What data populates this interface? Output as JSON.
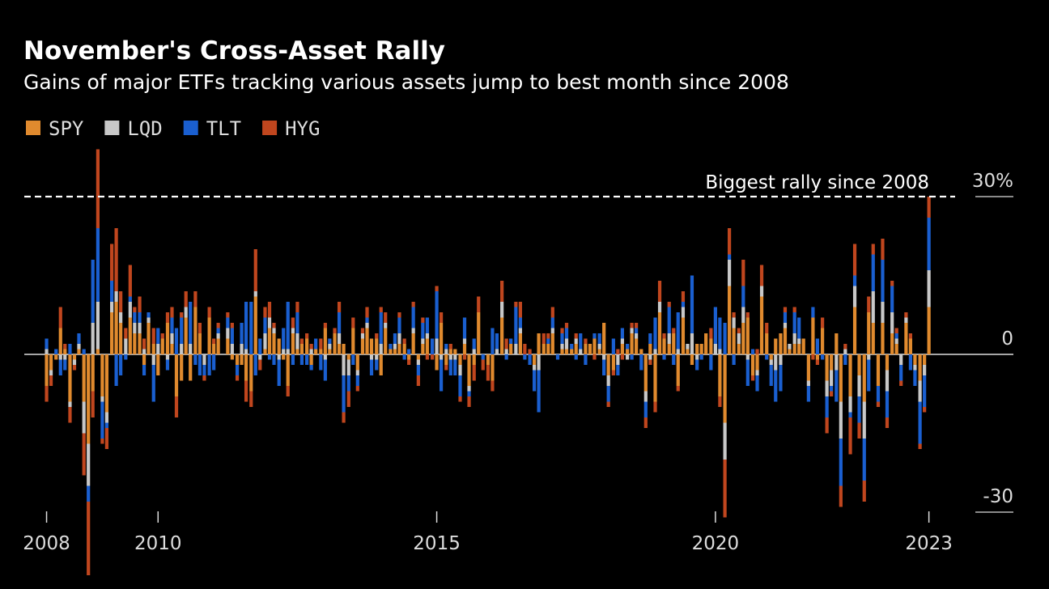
{
  "chart_data": {
    "type": "stacked_bar",
    "title": "November's Cross-Asset Rally",
    "subtitle": "Gains of major ETFs tracking various assets jump to best month since 2008",
    "annotation": {
      "text": "Biggest rally since 2008",
      "value": 30
    },
    "xlim": [
      2007.6,
      2024.3
    ],
    "xticks": [
      2008,
      2010,
      2015,
      2020,
      {
        "value": 2023.83,
        "label": "2023"
      }
    ],
    "ylim": [
      -42,
      40
    ],
    "yticks": [
      -30,
      0,
      {
        "value": 30,
        "label": "30%"
      }
    ],
    "legend": "top-left",
    "x": [
      2008,
      2008.08,
      2008.17,
      2008.25,
      2008.33,
      2008.42,
      2008.5,
      2008.58,
      2008.67,
      2008.75,
      2008.83,
      2008.92,
      2009,
      2009.08,
      2009.17,
      2009.25,
      2009.33,
      2009.42,
      2009.5,
      2009.58,
      2009.67,
      2009.75,
      2009.83,
      2009.92,
      2010,
      2010.08,
      2010.17,
      2010.25,
      2010.33,
      2010.42,
      2010.5,
      2010.58,
      2010.67,
      2010.75,
      2010.83,
      2010.92,
      2011,
      2011.08,
      2011.17,
      2011.25,
      2011.33,
      2011.42,
      2011.5,
      2011.58,
      2011.67,
      2011.75,
      2011.83,
      2011.92,
      2012,
      2012.08,
      2012.17,
      2012.25,
      2012.33,
      2012.42,
      2012.5,
      2012.58,
      2012.67,
      2012.75,
      2012.83,
      2012.92,
      2013,
      2013.08,
      2013.17,
      2013.25,
      2013.33,
      2013.42,
      2013.5,
      2013.58,
      2013.67,
      2013.75,
      2013.83,
      2013.92,
      2014,
      2014.08,
      2014.17,
      2014.25,
      2014.33,
      2014.42,
      2014.5,
      2014.58,
      2014.67,
      2014.75,
      2014.83,
      2014.92,
      2015,
      2015.08,
      2015.17,
      2015.25,
      2015.33,
      2015.42,
      2015.5,
      2015.58,
      2015.67,
      2015.75,
      2015.83,
      2015.92,
      2016,
      2016.08,
      2016.17,
      2016.25,
      2016.33,
      2016.42,
      2016.5,
      2016.58,
      2016.67,
      2016.75,
      2016.83,
      2016.92,
      2017,
      2017.08,
      2017.17,
      2017.25,
      2017.33,
      2017.42,
      2017.5,
      2017.58,
      2017.67,
      2017.75,
      2017.83,
      2017.92,
      2018,
      2018.08,
      2018.17,
      2018.25,
      2018.33,
      2018.42,
      2018.5,
      2018.58,
      2018.67,
      2018.75,
      2018.83,
      2018.92,
      2019,
      2019.08,
      2019.17,
      2019.25,
      2019.33,
      2019.42,
      2019.5,
      2019.58,
      2019.67,
      2019.75,
      2019.83,
      2019.92,
      2020,
      2020.08,
      2020.17,
      2020.25,
      2020.33,
      2020.42,
      2020.5,
      2020.58,
      2020.67,
      2020.75,
      2020.83,
      2020.92,
      2021,
      2021.08,
      2021.17,
      2021.25,
      2021.33,
      2021.42,
      2021.5,
      2021.58,
      2021.67,
      2021.75,
      2021.83,
      2021.92,
      2022,
      2022.08,
      2022.17,
      2022.25,
      2022.33,
      2022.42,
      2022.5,
      2022.58,
      2022.67,
      2022.75,
      2022.83,
      2022.92,
      2023,
      2023.08,
      2023.17,
      2023.25,
      2023.33,
      2023.42,
      2023.5,
      2023.58,
      2023.67,
      2023.75,
      2023.83
    ],
    "series": [
      {
        "name": "SPY",
        "color": "#e08a2e",
        "values": [
          -6,
          -3,
          -1,
          5,
          1,
          -9,
          -1,
          1,
          -9,
          -17,
          -7,
          1,
          -8,
          -11,
          8,
          10,
          6,
          0,
          7,
          4,
          4,
          -2,
          6,
          2,
          -4,
          3,
          6,
          2,
          -8,
          -5,
          7,
          -5,
          9,
          4,
          0,
          7,
          2,
          3,
          0,
          3,
          -1,
          -2,
          -2,
          -5,
          -7,
          11,
          0,
          1,
          5,
          4,
          3,
          -1,
          -6,
          4,
          1,
          2,
          3,
          -2,
          1,
          1,
          5,
          1,
          4,
          2,
          2,
          -1,
          5,
          -3,
          3,
          5,
          3,
          3,
          -4,
          5,
          1,
          1,
          2,
          2,
          -1,
          4,
          -1,
          2,
          3,
          0,
          -3,
          6,
          -2,
          1,
          1,
          -2,
          2,
          -6,
          -2,
          8,
          0,
          -2,
          -5,
          0,
          7,
          0,
          2,
          0,
          4,
          0,
          0,
          -2,
          4,
          2,
          2,
          4,
          0,
          1,
          1,
          1,
          2,
          0,
          2,
          2,
          3,
          1,
          6,
          -4,
          -3,
          0,
          2,
          1,
          4,
          3,
          1,
          -7,
          2,
          -9,
          8,
          3,
          2,
          4,
          -6,
          7,
          1,
          -2,
          2,
          2,
          4,
          3,
          0,
          -8,
          -13,
          13,
          5,
          2,
          6,
          7,
          -4,
          -3,
          11,
          4,
          -1,
          3,
          4,
          5,
          1,
          2,
          2,
          3,
          -5,
          7,
          -1,
          5,
          -5,
          -3,
          4,
          -9,
          0,
          -8,
          9,
          -4,
          -9,
          8,
          6,
          -6,
          6,
          -3,
          4,
          2,
          0,
          6,
          3,
          -2,
          -5,
          -2,
          9
        ]
      },
      {
        "name": "LQD",
        "color": "#c8c8c8",
        "values": [
          1,
          -1,
          0,
          -1,
          -1,
          -1,
          -1,
          1,
          -6,
          -8,
          6,
          9,
          -1,
          -2,
          2,
          2,
          2,
          3,
          3,
          2,
          2,
          1,
          1,
          -2,
          2,
          0,
          -1,
          2,
          0,
          2,
          2,
          2,
          0,
          0,
          -2,
          0,
          0,
          1,
          0,
          2,
          2,
          0,
          2,
          1,
          0,
          1,
          -1,
          3,
          2,
          1,
          -1,
          1,
          1,
          1,
          3,
          0,
          0,
          1,
          0,
          0,
          -1,
          1,
          0,
          2,
          -4,
          -3,
          0,
          -1,
          1,
          1,
          -1,
          -1,
          2,
          1,
          0,
          1,
          2,
          0,
          0,
          1,
          -1,
          1,
          1,
          0,
          3,
          -1,
          1,
          -1,
          -1,
          -2,
          1,
          -1,
          1,
          0,
          0,
          0,
          0,
          1,
          3,
          1,
          0,
          2,
          1,
          0,
          0,
          -1,
          -3,
          0,
          0,
          1,
          0,
          1,
          2,
          0,
          1,
          1,
          0,
          0,
          0,
          1,
          -1,
          -2,
          0,
          -2,
          1,
          -1,
          1,
          1,
          0,
          -2,
          -1,
          1,
          2,
          0,
          2,
          0,
          1,
          2,
          1,
          4,
          -1,
          0,
          0,
          0,
          2,
          1,
          -7,
          5,
          2,
          2,
          3,
          -1,
          0,
          -1,
          2,
          0,
          -1,
          -3,
          -2,
          1,
          1,
          2,
          1,
          0,
          -1,
          0,
          0,
          0,
          -3,
          -3,
          -3,
          -7,
          1,
          -3,
          4,
          -4,
          -7,
          -1,
          6,
          0,
          4,
          -4,
          4,
          1,
          -2,
          1,
          0,
          -1,
          -4,
          -2,
          7
        ]
      },
      {
        "name": "TLT",
        "color": "#1a5fd0",
        "values": [
          2,
          0,
          1,
          -3,
          -2,
          2,
          0,
          2,
          1,
          -3,
          12,
          14,
          -7,
          -1,
          4,
          -6,
          -4,
          -1,
          1,
          2,
          2,
          -2,
          1,
          -7,
          3,
          0,
          -2,
          3,
          5,
          5,
          0,
          8,
          -2,
          -4,
          -2,
          -4,
          -3,
          1,
          0,
          2,
          3,
          -2,
          4,
          9,
          10,
          -4,
          3,
          3,
          -1,
          -2,
          -5,
          4,
          9,
          -2,
          4,
          -2,
          -2,
          -1,
          2,
          -3,
          -4,
          1,
          0,
          4,
          -7,
          -3,
          -2,
          -2,
          0,
          1,
          -3,
          -2,
          6,
          0,
          1,
          2,
          3,
          -1,
          1,
          4,
          -2,
          3,
          3,
          3,
          9,
          -6,
          1,
          -3,
          -3,
          -4,
          4,
          -1,
          2,
          0,
          -1,
          0,
          5,
          3,
          0,
          -1,
          1,
          7,
          2,
          -1,
          -2,
          -4,
          -8,
          0,
          1,
          2,
          -1,
          2,
          2,
          1,
          -1,
          3,
          -2,
          0,
          1,
          2,
          -3,
          -3,
          3,
          -2,
          2,
          1,
          -1,
          1,
          -3,
          -3,
          2,
          6,
          0,
          -1,
          5,
          -2,
          7,
          1,
          0,
          11,
          -2,
          -1,
          0,
          -3,
          7,
          6,
          6,
          1,
          -2,
          0,
          4,
          -5,
          1,
          -3,
          0,
          -1,
          -4,
          -6,
          -5,
          2,
          0,
          4,
          4,
          0,
          -3,
          2,
          3,
          -1,
          -4,
          -1,
          -6,
          -9,
          -2,
          -1,
          2,
          -5,
          -8,
          -6,
          7,
          -3,
          8,
          -5,
          5,
          1,
          -3,
          0,
          -3,
          -3,
          -8,
          -6,
          10
        ]
      },
      {
        "name": "HYG",
        "color": "#c0461e",
        "values": [
          -3,
          -2,
          0,
          4,
          1,
          -3,
          -1,
          0,
          -8,
          -14,
          -5,
          15,
          -1,
          -4,
          7,
          12,
          4,
          2,
          6,
          1,
          3,
          2,
          0,
          3,
          0,
          1,
          2,
          2,
          -4,
          1,
          3,
          0,
          3,
          2,
          -1,
          2,
          1,
          1,
          0,
          1,
          1,
          -1,
          0,
          -4,
          -3,
          8,
          -2,
          2,
          3,
          1,
          0,
          0,
          -2,
          2,
          2,
          1,
          1,
          1,
          0,
          2,
          1,
          0,
          1,
          2,
          -2,
          -3,
          2,
          -1,
          1,
          2,
          0,
          1,
          1,
          2,
          0,
          0,
          1,
          1,
          -1,
          1,
          -2,
          1,
          -1,
          -1,
          1,
          2,
          -1,
          1,
          0,
          -1,
          -1,
          -2,
          -3,
          3,
          -2,
          -3,
          -2,
          0,
          4,
          2,
          0,
          1,
          3,
          2,
          1,
          0,
          0,
          2,
          1,
          2,
          0,
          1,
          1,
          0,
          1,
          0,
          1,
          0,
          -1,
          0,
          0,
          -1,
          -1,
          1,
          -1,
          0,
          1,
          1,
          0,
          -2,
          -1,
          -2,
          4,
          1,
          1,
          1,
          -1,
          2,
          0,
          0,
          0,
          0,
          0,
          2,
          0,
          -2,
          -11,
          5,
          1,
          1,
          5,
          1,
          -1,
          1,
          4,
          2,
          0,
          0,
          0,
          1,
          0,
          1,
          0,
          0,
          0,
          -1,
          -1,
          2,
          -3,
          -1,
          0,
          -4,
          1,
          -7,
          6,
          -3,
          -4,
          3,
          2,
          -1,
          4,
          -2,
          1,
          1,
          -1,
          1,
          1,
          0,
          -1,
          -1,
          4
        ]
      }
    ]
  }
}
